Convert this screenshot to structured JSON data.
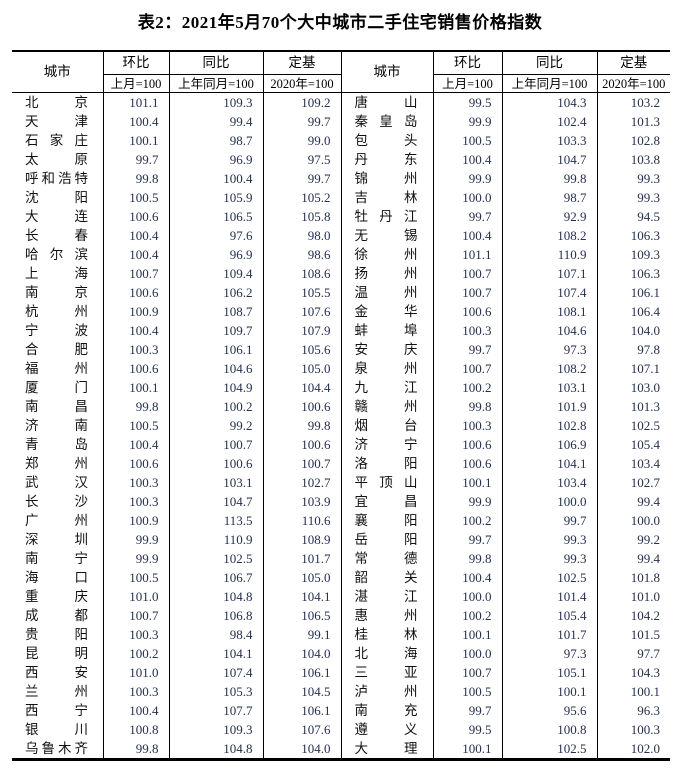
{
  "title": "表2：2021年5月70个大中城市二手住宅销售价格指数",
  "header": {
    "city": "城市",
    "groups": [
      {
        "label": "环比",
        "base": "上月=100"
      },
      {
        "label": "同比",
        "base": "上年同月=100"
      },
      {
        "label": "定基",
        "base": "2020年=100"
      }
    ]
  },
  "chart_data": {
    "type": "table",
    "title": "表2：2021年5月70个大中城市二手住宅销售价格指数",
    "columns": [
      "城市",
      "环比(上月=100)",
      "同比(上年同月=100)",
      "定基(2020年=100)"
    ],
    "note": "two side-by-side halves, 35 cities each"
  },
  "left_rows": [
    [
      "北京",
      "101.1",
      "109.3",
      "109.2"
    ],
    [
      "天津",
      "100.4",
      "99.4",
      "99.7"
    ],
    [
      "石家庄",
      "100.1",
      "98.7",
      "99.0"
    ],
    [
      "太原",
      "99.7",
      "96.9",
      "97.5"
    ],
    [
      "呼和浩特",
      "99.8",
      "100.4",
      "99.7"
    ],
    [
      "沈阳",
      "100.5",
      "105.9",
      "105.2"
    ],
    [
      "大连",
      "100.6",
      "106.5",
      "105.8"
    ],
    [
      "长春",
      "100.4",
      "97.6",
      "98.0"
    ],
    [
      "哈尔滨",
      "100.4",
      "96.9",
      "98.6"
    ],
    [
      "上海",
      "100.7",
      "109.4",
      "108.6"
    ],
    [
      "南京",
      "100.6",
      "106.2",
      "105.5"
    ],
    [
      "杭州",
      "100.9",
      "108.7",
      "107.6"
    ],
    [
      "宁波",
      "100.4",
      "109.7",
      "107.9"
    ],
    [
      "合肥",
      "100.3",
      "106.1",
      "105.6"
    ],
    [
      "福州",
      "100.6",
      "104.6",
      "105.0"
    ],
    [
      "厦门",
      "100.1",
      "104.9",
      "104.4"
    ],
    [
      "南昌",
      "99.8",
      "100.2",
      "100.6"
    ],
    [
      "济南",
      "100.5",
      "99.2",
      "99.8"
    ],
    [
      "青岛",
      "100.4",
      "100.7",
      "100.6"
    ],
    [
      "郑州",
      "100.6",
      "100.6",
      "100.7"
    ],
    [
      "武汉",
      "100.3",
      "103.1",
      "102.7"
    ],
    [
      "长沙",
      "100.3",
      "104.7",
      "103.9"
    ],
    [
      "广州",
      "100.9",
      "113.5",
      "110.6"
    ],
    [
      "深圳",
      "99.9",
      "110.9",
      "108.9"
    ],
    [
      "南宁",
      "99.9",
      "102.5",
      "101.7"
    ],
    [
      "海口",
      "100.5",
      "106.7",
      "105.0"
    ],
    [
      "重庆",
      "101.0",
      "104.8",
      "104.1"
    ],
    [
      "成都",
      "100.7",
      "106.8",
      "106.5"
    ],
    [
      "贵阳",
      "100.3",
      "98.4",
      "99.1"
    ],
    [
      "昆明",
      "100.2",
      "104.1",
      "104.0"
    ],
    [
      "西安",
      "101.0",
      "107.4",
      "106.1"
    ],
    [
      "兰州",
      "100.3",
      "105.3",
      "104.5"
    ],
    [
      "西宁",
      "100.4",
      "107.7",
      "106.1"
    ],
    [
      "银川",
      "100.8",
      "109.3",
      "107.6"
    ],
    [
      "乌鲁木齐",
      "99.8",
      "104.8",
      "104.0"
    ]
  ],
  "right_rows": [
    [
      "唐山",
      "99.5",
      "104.3",
      "103.2"
    ],
    [
      "秦皇岛",
      "99.9",
      "102.4",
      "101.3"
    ],
    [
      "包头",
      "100.5",
      "103.3",
      "102.8"
    ],
    [
      "丹东",
      "100.4",
      "104.7",
      "103.8"
    ],
    [
      "锦州",
      "99.9",
      "99.8",
      "99.3"
    ],
    [
      "吉林",
      "100.0",
      "98.7",
      "99.3"
    ],
    [
      "牡丹江",
      "99.7",
      "92.9",
      "94.5"
    ],
    [
      "无锡",
      "100.4",
      "108.2",
      "106.3"
    ],
    [
      "徐州",
      "101.1",
      "110.9",
      "109.3"
    ],
    [
      "扬州",
      "100.7",
      "107.1",
      "106.3"
    ],
    [
      "温州",
      "100.7",
      "107.4",
      "106.1"
    ],
    [
      "金华",
      "100.6",
      "108.1",
      "106.4"
    ],
    [
      "蚌埠",
      "100.3",
      "104.6",
      "104.0"
    ],
    [
      "安庆",
      "99.7",
      "97.3",
      "97.8"
    ],
    [
      "泉州",
      "100.7",
      "108.2",
      "107.1"
    ],
    [
      "九江",
      "100.2",
      "103.1",
      "103.0"
    ],
    [
      "赣州",
      "99.8",
      "101.9",
      "101.3"
    ],
    [
      "烟台",
      "100.3",
      "102.8",
      "102.5"
    ],
    [
      "济宁",
      "100.6",
      "106.9",
      "105.4"
    ],
    [
      "洛阳",
      "100.6",
      "104.1",
      "103.4"
    ],
    [
      "平顶山",
      "100.1",
      "103.4",
      "102.7"
    ],
    [
      "宜昌",
      "99.9",
      "100.0",
      "99.4"
    ],
    [
      "襄阳",
      "100.2",
      "99.7",
      "100.0"
    ],
    [
      "岳阳",
      "99.7",
      "99.3",
      "99.2"
    ],
    [
      "常德",
      "99.8",
      "99.3",
      "99.4"
    ],
    [
      "韶关",
      "100.4",
      "102.5",
      "101.8"
    ],
    [
      "湛江",
      "100.0",
      "101.4",
      "101.0"
    ],
    [
      "惠州",
      "100.2",
      "105.4",
      "104.2"
    ],
    [
      "桂林",
      "100.1",
      "101.7",
      "101.5"
    ],
    [
      "北海",
      "100.0",
      "97.3",
      "97.7"
    ],
    [
      "三亚",
      "100.7",
      "105.1",
      "104.3"
    ],
    [
      "泸州",
      "100.5",
      "100.1",
      "100.1"
    ],
    [
      "南充",
      "99.7",
      "95.6",
      "96.3"
    ],
    [
      "遵义",
      "99.5",
      "100.8",
      "100.3"
    ],
    [
      "大理",
      "100.1",
      "102.5",
      "102.0"
    ]
  ]
}
